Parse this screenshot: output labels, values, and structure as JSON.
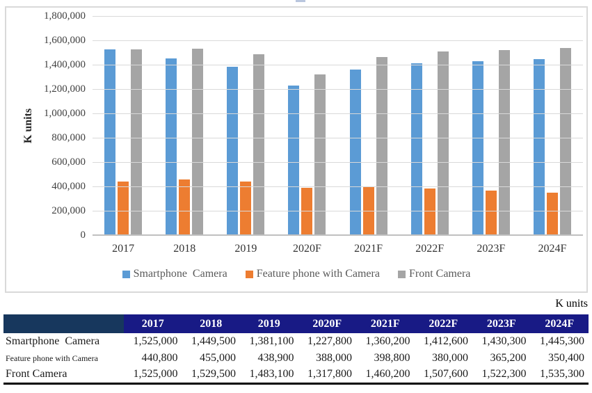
{
  "chart_data": {
    "type": "bar",
    "categories": [
      "2017",
      "2018",
      "2019",
      "2020F",
      "2021F",
      "2022F",
      "2023F",
      "2024F"
    ],
    "series": [
      {
        "name": "Smartphone  Camera",
        "color": "#5B9BD5",
        "values": [
          1525000,
          1449500,
          1381100,
          1227800,
          1360200,
          1412600,
          1430300,
          1445300
        ]
      },
      {
        "name": "Feature phone with Camera",
        "color": "#ED7D31",
        "values": [
          440800,
          455000,
          438900,
          388000,
          398800,
          380000,
          365200,
          350400
        ]
      },
      {
        "name": "Front Camera",
        "color": "#A5A5A5",
        "values": [
          1525000,
          1529500,
          1483100,
          1317800,
          1460200,
          1507600,
          1522300,
          1535300
        ]
      }
    ],
    "ylabel": "K units",
    "xlabel": "",
    "ylim": [
      0,
      1800000
    ],
    "ytick_labels": [
      "1,800,000",
      "1,600,000",
      "1,400,000",
      "1,200,000",
      "1,000,000",
      "800,000",
      "600,000",
      "400,000",
      "200,000",
      "0"
    ],
    "grid": true,
    "legend_position": "bottom"
  },
  "table": {
    "units_label": "K units",
    "columns": [
      "2017",
      "2018",
      "2019",
      "2020F",
      "2021F",
      "2022F",
      "2023F",
      "2024F"
    ],
    "rows": [
      {
        "label": "Smartphone  Camera",
        "values": [
          "1,525,000",
          "1,449,500",
          "1,381,100",
          "1,227,800",
          "1,360,200",
          "1,412,600",
          "1,430,300",
          "1,445,300"
        ]
      },
      {
        "label": "Feature phone with Camera",
        "values": [
          "440,800",
          "455,000",
          "438,900",
          "388,000",
          "398,800",
          "380,000",
          "365,200",
          "350,400"
        ]
      },
      {
        "label": "Front Camera",
        "values": [
          "1,525,000",
          "1,529,500",
          "1,483,100",
          "1,317,800",
          "1,460,200",
          "1,507,600",
          "1,522,300",
          "1,535,300"
        ]
      }
    ],
    "header_bg": "#181A85",
    "header_first_cell_bg": "#17375D",
    "header_text_color": "#FFFFFF"
  },
  "colors": {
    "bar_blue": "#5B9BD5",
    "bar_orange": "#ED7D31",
    "bar_gray": "#A5A5A5",
    "gridline": "#D9D9D9",
    "axis_baseline": "#C0C0C0",
    "chart_border": "#D9D9D9",
    "axis_text": "#404040",
    "legend_text": "#595959"
  }
}
